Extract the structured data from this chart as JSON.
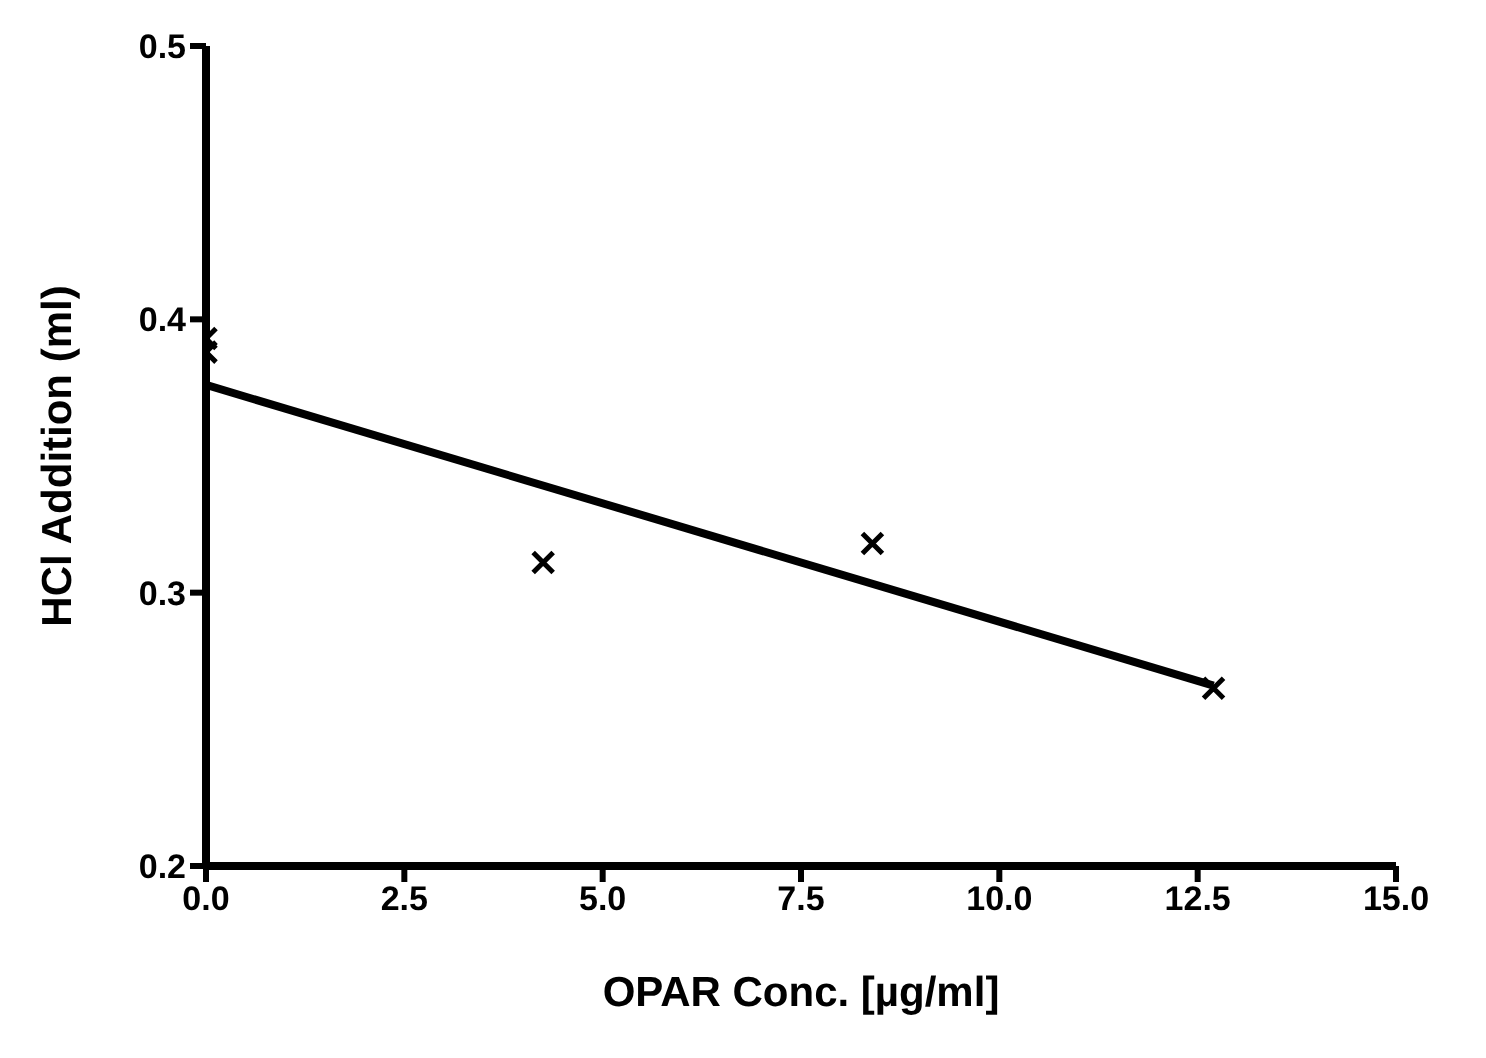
{
  "chart_data": {
    "type": "scatter",
    "xlabel": "OPAR Conc. [µg/ml]",
    "ylabel": "HCl Addition (ml)",
    "xlim": [
      0,
      15
    ],
    "xticks": [
      {
        "value": 0,
        "label": "0.0"
      },
      {
        "value": 2.5,
        "label": "2.5"
      },
      {
        "value": 5,
        "label": "5.0"
      },
      {
        "value": 7.5,
        "label": "7.5"
      },
      {
        "value": 10,
        "label": "10.0"
      },
      {
        "value": 12.5,
        "label": "12.5"
      },
      {
        "value": 15,
        "label": "15.0"
      }
    ],
    "ylim": [
      0.2,
      0.5
    ],
    "yticks": [
      0.2,
      0.3,
      0.4,
      0.5
    ],
    "grid": false,
    "legend": false,
    "marker": "cross",
    "series": [
      {
        "color": "#000000",
        "x": [
          0,
          0,
          4.25,
          8.4,
          12.7
        ],
        "values": [
          0.393,
          0.388,
          0.311,
          0.318,
          0.265
        ]
      },
      {
        "type": "line",
        "color": "#000000",
        "x": [
          0,
          12.7
        ],
        "values": [
          0.376,
          0.266
        ],
        "marker": "none"
      }
    ]
  }
}
